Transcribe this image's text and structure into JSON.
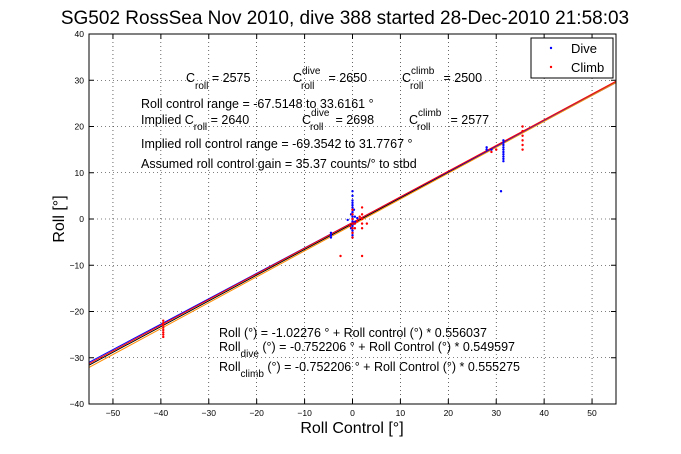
{
  "chart_data": {
    "type": "scatter",
    "title": "SG502 RossSea Nov 2010, dive 388 started 28-Dec-2010 21:58:03",
    "xlabel": "Roll Control [°]",
    "ylabel": "Roll [°]",
    "xlim": [
      -55,
      55
    ],
    "ylim": [
      -40,
      40
    ],
    "xticks": [
      -50,
      -40,
      -30,
      -20,
      -10,
      0,
      10,
      20,
      30,
      40,
      50
    ],
    "yticks": [
      -40,
      -30,
      -20,
      -10,
      0,
      10,
      20,
      30,
      40
    ],
    "grid": true,
    "legend_position": "top-right",
    "legend": [
      {
        "label": "Dive",
        "color": "#0000ff"
      },
      {
        "label": "Climb",
        "color": "#ff0000"
      }
    ],
    "annotations": {
      "c_roll": {
        "base": "C",
        "sub": "roll",
        "val": " = 2575"
      },
      "c_roll_dive": {
        "base": "C",
        "sup": "dive",
        "sub": "roll",
        "val": " = 2650"
      },
      "c_roll_climb": {
        "base": "C",
        "sup": "climb",
        "sub": "roll",
        "val": " = 2500"
      },
      "roll_control_range": "Roll control range = -67.5148 to 33.6161 °",
      "implied_c_roll": {
        "pre": "Implied C",
        "sub": "roll",
        "val": " = 2640"
      },
      "implied_c_roll_dive": {
        "base": "C",
        "sup": "dive",
        "sub": "roll",
        "val": " = 2698"
      },
      "implied_c_roll_climb": {
        "base": "C",
        "sup": "climb",
        "sub": "roll",
        "val": " = 2577"
      },
      "implied_range": "Implied roll control range = -69.3542 to 31.7767 °",
      "assumed_gain": "Assumed roll control gain = 35.37 counts/° to stbd",
      "fit_all": "Roll (°) = -1.02276 ° + Roll control (°) * 0.556037",
      "fit_dive": {
        "base": "Roll",
        "sub": "dive",
        "rest": " (°) = -0.752206 ° + Roll Control (°) * 0.549597"
      },
      "fit_climb": {
        "base": "Roll",
        "sub": "climb",
        "rest": " (°) = -0.752206 ° + Roll Control (°) * 0.555275"
      }
    },
    "fit_lines": [
      {
        "intercept": -1.02276,
        "slope": 0.556037,
        "color": "#000000"
      },
      {
        "intercept": -0.752206,
        "slope": 0.549597,
        "color": "#0000ff"
      },
      {
        "intercept": -0.752206,
        "slope": 0.555275,
        "color": "#ff0000"
      },
      {
        "intercept": -1.3,
        "slope": 0.56,
        "color": "#ff8c00"
      }
    ],
    "series": [
      {
        "name": "Dive",
        "color": "#0000ff",
        "points": [
          [
            0,
            6
          ],
          [
            0,
            5
          ],
          [
            0,
            4
          ],
          [
            0,
            3.5
          ],
          [
            0,
            3
          ],
          [
            0,
            2.5
          ],
          [
            0,
            2
          ],
          [
            0,
            1.5
          ],
          [
            0,
            1
          ],
          [
            0,
            0.5
          ],
          [
            0,
            0
          ],
          [
            0,
            -0.5
          ],
          [
            0,
            -1
          ],
          [
            0,
            -1.5
          ],
          [
            0,
            -2
          ],
          [
            0,
            -2.5
          ],
          [
            0,
            -3
          ],
          [
            0,
            -3.5
          ],
          [
            0,
            -4
          ],
          [
            0.3,
            2
          ],
          [
            0.3,
            -1
          ],
          [
            -0.3,
            1
          ],
          [
            -0.3,
            -2
          ],
          [
            0.5,
            0.5
          ],
          [
            0.6,
            -0.6
          ],
          [
            1,
            0.2
          ],
          [
            -1,
            -0.2
          ],
          [
            -4.5,
            -3
          ],
          [
            -4.5,
            -3.5
          ],
          [
            -4.5,
            -4
          ],
          [
            28,
            15.5
          ],
          [
            28,
            15
          ],
          [
            29,
            15
          ],
          [
            31.5,
            17
          ],
          [
            31.5,
            16.5
          ],
          [
            31.5,
            16
          ],
          [
            31.5,
            15.5
          ],
          [
            31.5,
            15
          ],
          [
            31.5,
            14.5
          ],
          [
            31.5,
            14
          ],
          [
            31.5,
            13.5
          ],
          [
            31.5,
            13
          ],
          [
            31.5,
            12.5
          ],
          [
            31,
            6
          ]
        ]
      },
      {
        "name": "Climb",
        "color": "#ff0000",
        "points": [
          [
            -39.5,
            -22
          ],
          [
            -39.5,
            -22.5
          ],
          [
            -39.5,
            -23
          ],
          [
            -39.5,
            -23.5
          ],
          [
            -39.5,
            -24
          ],
          [
            -39.5,
            -24.5
          ],
          [
            -39.5,
            -25
          ],
          [
            -39.5,
            -25.5
          ],
          [
            0,
            2
          ],
          [
            0,
            1
          ],
          [
            0,
            0
          ],
          [
            0,
            -1
          ],
          [
            0,
            -2
          ],
          [
            0,
            -3
          ],
          [
            0,
            -4
          ],
          [
            0.5,
            -1
          ],
          [
            -0.5,
            -1.5
          ],
          [
            0.5,
            -2
          ],
          [
            2,
            2.5
          ],
          [
            2,
            1
          ],
          [
            2,
            0
          ],
          [
            2,
            -1
          ],
          [
            2,
            -2
          ],
          [
            2,
            -8
          ],
          [
            -2.5,
            -8
          ],
          [
            3,
            -1
          ],
          [
            1,
            -0.5
          ],
          [
            1.5,
            0.5
          ],
          [
            29,
            14.5
          ],
          [
            30,
            15
          ],
          [
            35.5,
            15
          ],
          [
            35.5,
            16
          ],
          [
            35.5,
            17
          ],
          [
            35.5,
            18
          ],
          [
            35.5,
            19
          ],
          [
            35.5,
            20
          ]
        ]
      }
    ]
  }
}
